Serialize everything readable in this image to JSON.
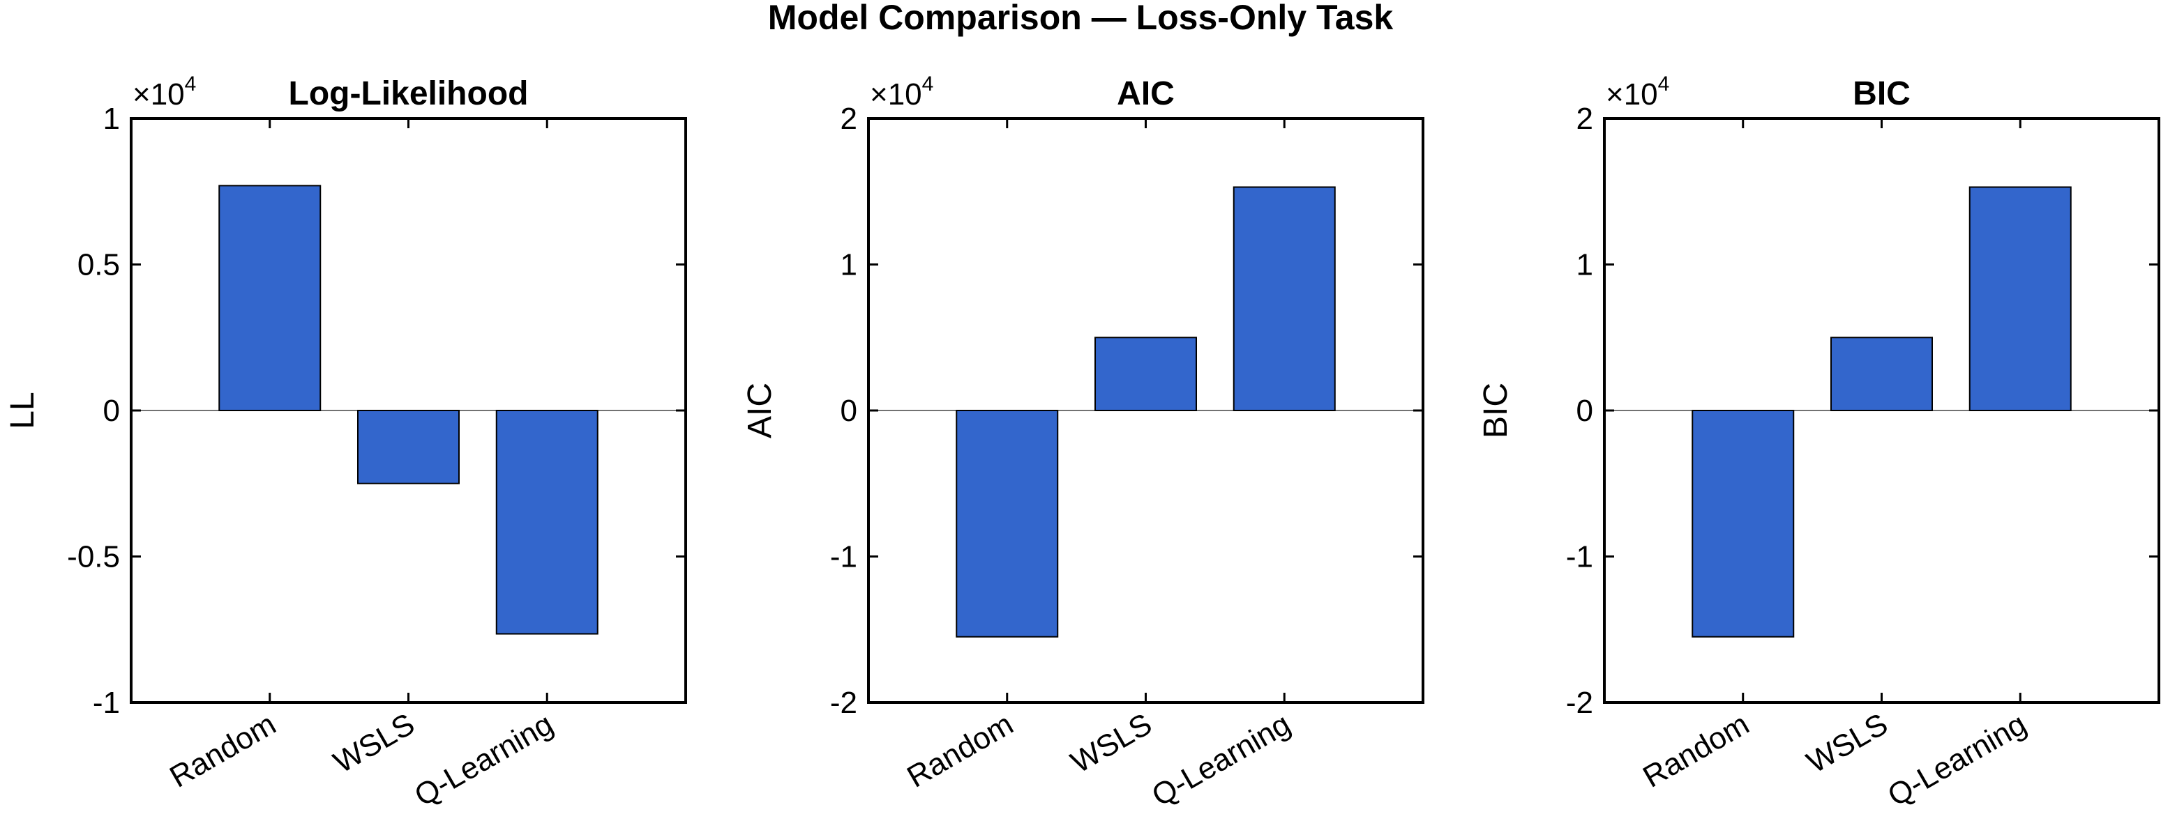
{
  "figure": {
    "title": "Model Comparison — Loss-Only Task"
  },
  "style": {
    "bar_color": "#3366cc",
    "axis_color": "#000000",
    "background": "#ffffff"
  },
  "chart_data": [
    {
      "type": "bar",
      "title": "Log-Likelihood",
      "xlabel": "",
      "ylabel": "LL",
      "exponent_label": "×10",
      "exponent_power": "4",
      "categories": [
        "Random",
        "WSLS",
        "Q-Learning"
      ],
      "values": [
        7700,
        -2500,
        -7650
      ],
      "ylim": [
        -10000,
        10000
      ],
      "yticks": [
        -10000,
        -5000,
        0,
        5000,
        10000
      ],
      "ytick_labels": [
        "-1",
        "-0.5",
        "0",
        "0.5",
        "1"
      ],
      "grid": false
    },
    {
      "type": "bar",
      "title": "AIC",
      "xlabel": "",
      "ylabel": "AIC",
      "exponent_label": "×10",
      "exponent_power": "4",
      "categories": [
        "Random",
        "WSLS",
        "Q-Learning"
      ],
      "values": [
        -15500,
        5000,
        15300
      ],
      "ylim": [
        -20000,
        20000
      ],
      "yticks": [
        -20000,
        -10000,
        0,
        10000,
        20000
      ],
      "ytick_labels": [
        "-2",
        "-1",
        "0",
        "1",
        "2"
      ],
      "grid": false
    },
    {
      "type": "bar",
      "title": "BIC",
      "xlabel": "",
      "ylabel": "BIC",
      "exponent_label": "×10",
      "exponent_power": "4",
      "categories": [
        "Random",
        "WSLS",
        "Q-Learning"
      ],
      "values": [
        -15500,
        5000,
        15300
      ],
      "ylim": [
        -20000,
        20000
      ],
      "yticks": [
        -20000,
        -10000,
        0,
        10000,
        20000
      ],
      "ytick_labels": [
        "-2",
        "-1",
        "0",
        "1",
        "2"
      ],
      "grid": false
    }
  ]
}
